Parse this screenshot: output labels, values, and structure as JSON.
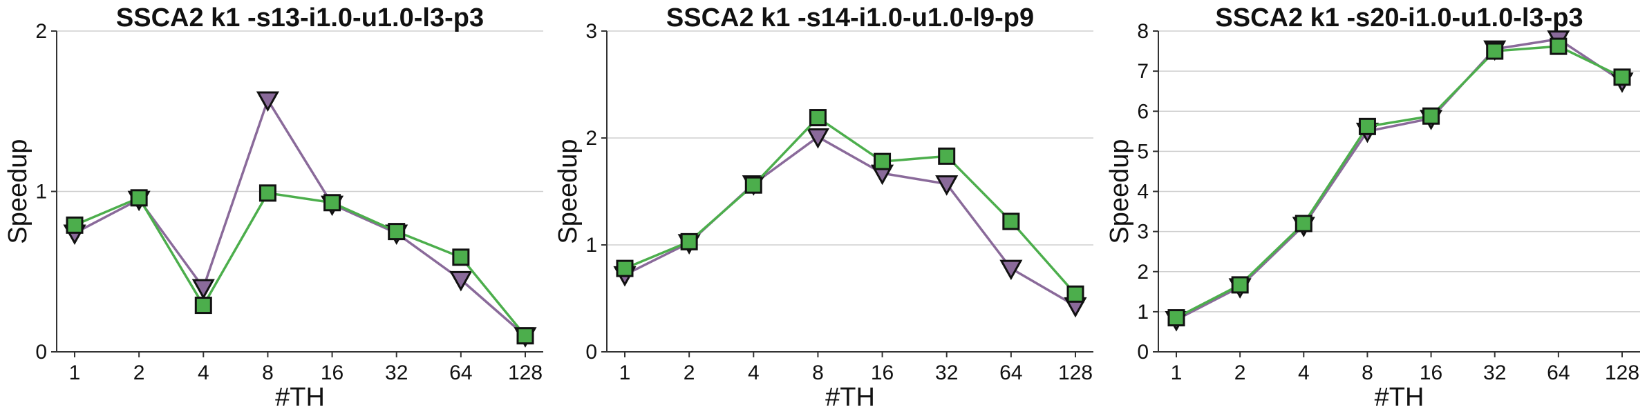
{
  "chart_data": [
    {
      "type": "line",
      "title": "SSCA2 k1 -s13-i1.0-u1.0-l3-p3",
      "xlabel": "#TH",
      "ylabel": "Speedup",
      "categories": [
        "1",
        "2",
        "4",
        "8",
        "16",
        "32",
        "64",
        "128"
      ],
      "ylim": [
        0,
        2
      ],
      "yticks": [
        "0",
        "1",
        "2"
      ],
      "grid": true,
      "series": [
        {
          "marker": "triangle-down",
          "color": "#8a6a9a",
          "values": [
            0.74,
            0.95,
            0.4,
            1.57,
            0.92,
            0.74,
            0.45,
            0.1
          ]
        },
        {
          "marker": "square",
          "color": "#4cae4c",
          "values": [
            0.79,
            0.96,
            0.29,
            0.99,
            0.93,
            0.75,
            0.59,
            0.1
          ]
        }
      ]
    },
    {
      "type": "line",
      "title": "SSCA2 k1 -s14-i1.0-u1.0-l9-p9",
      "xlabel": "#TH",
      "ylabel": "Speedup",
      "categories": [
        "1",
        "2",
        "4",
        "8",
        "16",
        "32",
        "64",
        "128"
      ],
      "ylim": [
        0,
        3
      ],
      "yticks": [
        "0",
        "1",
        "2",
        "3"
      ],
      "grid": true,
      "series": [
        {
          "marker": "triangle-down",
          "color": "#8a6a9a",
          "values": [
            0.72,
            1.02,
            1.57,
            2.01,
            1.67,
            1.57,
            0.78,
            0.43
          ]
        },
        {
          "marker": "square",
          "color": "#4cae4c",
          "values": [
            0.78,
            1.03,
            1.56,
            2.19,
            1.78,
            1.83,
            1.22,
            0.54
          ]
        }
      ]
    },
    {
      "type": "line",
      "title": "SSCA2 k1 -s20-i1.0-u1.0-l3-p3",
      "xlabel": "#TH",
      "ylabel": "Speedup",
      "categories": [
        "1",
        "2",
        "4",
        "8",
        "16",
        "32",
        "64",
        "128"
      ],
      "ylim": [
        0,
        8
      ],
      "yticks": [
        "0",
        "1",
        "2",
        "3",
        "4",
        "5",
        "6",
        "7",
        "8"
      ],
      "grid": true,
      "series": [
        {
          "marker": "triangle-down",
          "color": "#8a6a9a",
          "values": [
            0.8,
            1.62,
            3.15,
            5.5,
            5.82,
            7.55,
            7.8,
            6.75
          ]
        },
        {
          "marker": "square",
          "color": "#4cae4c",
          "values": [
            0.85,
            1.67,
            3.2,
            5.62,
            5.88,
            7.5,
            7.62,
            6.85
          ]
        }
      ]
    }
  ]
}
